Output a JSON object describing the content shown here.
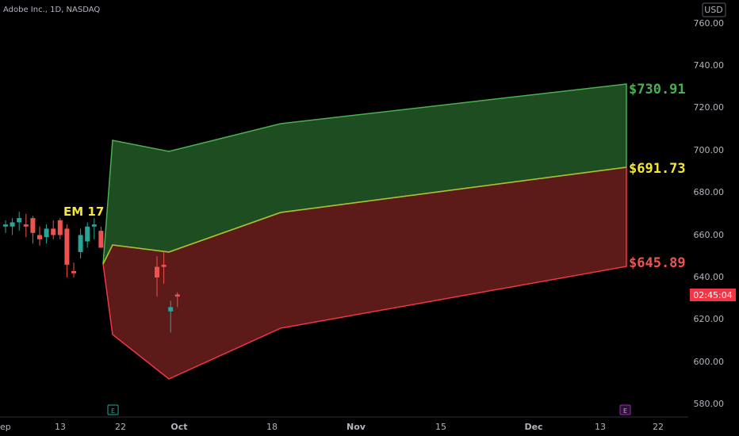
{
  "header": {
    "symbol_line": "Adobe Inc., 1D, NASDAQ"
  },
  "currency": "USD",
  "price_axis": {
    "ticks": [
      "760.00",
      "740.00",
      "720.00",
      "700.00",
      "680.00",
      "660.00",
      "640.00",
      "620.00",
      "600.00",
      "580.00"
    ]
  },
  "time_axis": {
    "labels": [
      "ep",
      "13",
      "22",
      "Oct",
      "18",
      "Nov",
      "15",
      "Dec",
      "13",
      "22"
    ]
  },
  "countdown": "02:45:04",
  "annotation": "EM 17",
  "levels": {
    "upper": "$730.91",
    "mid": "$691.73",
    "lower": "$645.89"
  },
  "event_markers": [
    "E",
    "E"
  ],
  "colors": {
    "bg": "#000000",
    "up": "#26a69a",
    "down": "#ef5350",
    "green_fill": "#1f4d22",
    "red_fill": "#5c1a18",
    "green_line": "#4caf50",
    "red_line": "#f23645",
    "mid_line": "#9acd32",
    "em_text": "#f5e63c",
    "countdown_bg": "#f23645"
  },
  "chart_data": {
    "type": "candlestick",
    "title": "Adobe Inc., 1D, NASDAQ",
    "y_range": [
      573,
      768
    ],
    "candles": [
      {
        "o": 664,
        "h": 667,
        "l": 661,
        "c": 665
      },
      {
        "o": 664,
        "h": 668,
        "l": 660,
        "c": 666
      },
      {
        "o": 666,
        "h": 671,
        "l": 662,
        "c": 668
      },
      {
        "o": 665,
        "h": 670,
        "l": 659,
        "c": 664
      },
      {
        "o": 668,
        "h": 669,
        "l": 656,
        "c": 661
      },
      {
        "o": 660,
        "h": 664,
        "l": 655,
        "c": 658
      },
      {
        "o": 659,
        "h": 665,
        "l": 656,
        "c": 663
      },
      {
        "o": 663,
        "h": 667,
        "l": 658,
        "c": 660
      },
      {
        "o": 667,
        "h": 668,
        "l": 658,
        "c": 660
      },
      {
        "o": 663,
        "h": 665,
        "l": 640,
        "c": 646
      },
      {
        "o": 643,
        "h": 647,
        "l": 640,
        "c": 642
      },
      {
        "o": 652,
        "h": 663,
        "l": 649,
        "c": 660
      },
      {
        "o": 657,
        "h": 666,
        "l": 654,
        "c": 664
      },
      {
        "o": 664,
        "h": 668,
        "l": 658,
        "c": 665
      },
      {
        "o": 662,
        "h": 664,
        "l": 654,
        "c": 654
      },
      {
        "o": 645,
        "h": 650,
        "l": 631,
        "c": 640
      },
      {
        "o": 646,
        "h": 652,
        "l": 637,
        "c": 645
      },
      {
        "o": 624,
        "h": 629,
        "l": 614,
        "c": 626
      },
      {
        "o": 632,
        "h": 633,
        "l": 626,
        "c": 631
      }
    ],
    "levels": {
      "upper": 730.91,
      "mid": 691.73,
      "lower": 645.89
    },
    "bands": {
      "upper": [
        [
          704.5
        ],
        [
          699
        ],
        [
          711.5
        ],
        [
          730.91
        ]
      ],
      "mid": [
        [
          655
        ],
        [
          652
        ],
        [
          670
        ],
        [
          691.73
        ]
      ],
      "lower": [
        [
          612.5
        ],
        [
          591.5
        ],
        [
          615
        ],
        [
          645.89
        ]
      ]
    }
  }
}
